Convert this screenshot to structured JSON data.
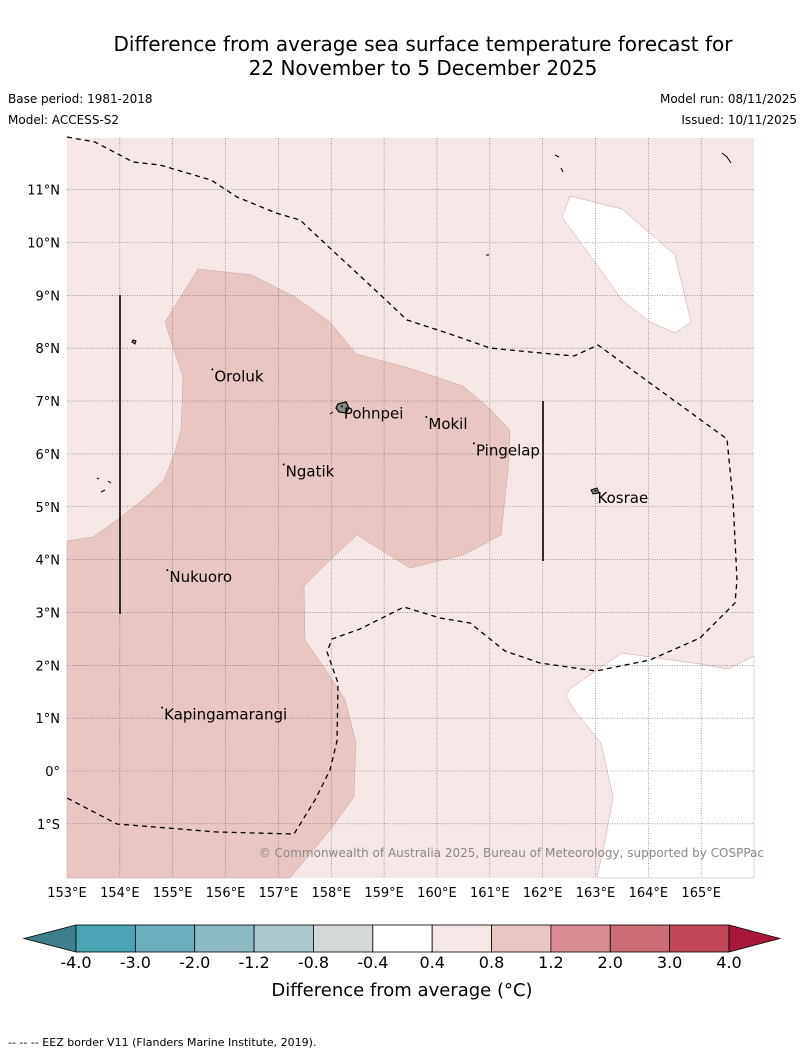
{
  "title_line1": "Difference from average sea surface temperature forecast for",
  "title_line2": "22 November to 5 December 2025",
  "base_period": "Base period: 1981-2018",
  "model": "Model: ACCESS-S2",
  "model_run": "Model run: 08/11/2025",
  "issued": "Issued: 10/11/2025",
  "copyright": "© Commonwealth of Australia 2025, Bureau of Meteorology, supported by COSPPac",
  "lat_labels": [
    "11°N",
    "10°N",
    "9°N",
    "8°N",
    "7°N",
    "6°N",
    "5°N",
    "4°N",
    "3°N",
    "2°N",
    "1°N",
    "0°",
    "1°S"
  ],
  "lon_labels": [
    "153°E",
    "154°E",
    "155°E",
    "156°E",
    "157°E",
    "158°E",
    "159°E",
    "160°E",
    "161°E",
    "162°E",
    "163°E",
    "164°E",
    "165°E"
  ],
  "places": [
    {
      "name": "Oroluk",
      "lon": 155.75,
      "lat": 7.6
    },
    {
      "name": "Pohnpei",
      "lon": 158.2,
      "lat": 6.9
    },
    {
      "name": "Mokil",
      "lon": 159.8,
      "lat": 6.7
    },
    {
      "name": "Ngatik",
      "lon": 157.1,
      "lat": 5.8
    },
    {
      "name": "Pingelap",
      "lon": 160.7,
      "lat": 6.2
    },
    {
      "name": "Kosrae",
      "lon": 163.0,
      "lat": 5.3
    },
    {
      "name": "Nukuoro",
      "lon": 154.9,
      "lat": 3.8
    },
    {
      "name": "Kapingamarangi",
      "lon": 154.8,
      "lat": 1.2
    }
  ],
  "colorbar": {
    "ticks": [
      "-4.0",
      "-3.0",
      "-2.0",
      "-1.2",
      "-0.8",
      "-0.4",
      "0.4",
      "0.8",
      "1.2",
      "2.0",
      "3.0",
      "4.0"
    ],
    "colors": [
      "#4aa4b4",
      "#6cb0be",
      "#8ebac4",
      "#aac8cc",
      "#d4d8d8",
      "#ffffff",
      "#f5e7e6",
      "#e8c6c2",
      "#d98e96",
      "#cc6c76",
      "#c0485a"
    ],
    "under_color": "#3d7f8b",
    "over_color": "#a8183a",
    "label": "Difference from average (°C)"
  },
  "footnote": "--  --  -- EEZ border V11 (Flanders Marine Institute, 2019).",
  "legend_categories": {
    "light_warm": "0.4 to 0.8",
    "warm": "0.8 to 1.2",
    "neutral": "-0.4 to 0.4"
  }
}
